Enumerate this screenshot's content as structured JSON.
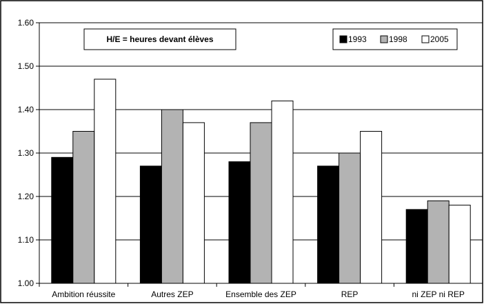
{
  "chart_data": {
    "type": "bar",
    "title": "H/E = heures devant élèves",
    "categories": [
      "Ambition réussite",
      "Autres ZEP",
      "Ensemble des ZEP",
      "REP",
      "ni ZEP ni REP"
    ],
    "series": [
      {
        "name": "1993",
        "color": "#000000",
        "values": [
          1.29,
          1.27,
          1.28,
          1.27,
          1.17
        ]
      },
      {
        "name": "1998",
        "color": "#b3b3b3",
        "values": [
          1.35,
          1.4,
          1.37,
          1.3,
          1.19
        ]
      },
      {
        "name": "2005",
        "color": "#ffffff",
        "values": [
          1.47,
          1.37,
          1.42,
          1.35,
          1.18
        ]
      }
    ],
    "yticks": [
      "1.00",
      "1.10",
      "1.20",
      "1.30",
      "1.40",
      "1.50",
      "1.60"
    ],
    "ylim": [
      1.0,
      1.6
    ],
    "grid": true,
    "legend_position": "top-right"
  }
}
